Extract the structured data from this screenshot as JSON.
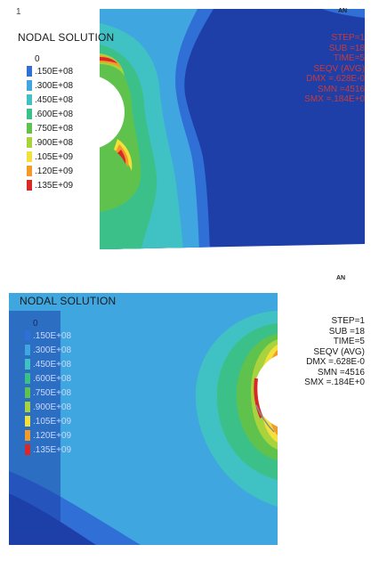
{
  "panels": [
    {
      "title": "NODAL SOLUTION",
      "step_number": "1",
      "ansys_mark": "AN",
      "info_lines": [
        "STEP=1",
        "SUB =18",
        "TIME=5",
        "SEQV    (AVG)",
        "DMX =.628E-0",
        "SMN =4516",
        "SMX =.184E+0"
      ],
      "legend": [
        {
          "label": "0",
          "color": "#1e3fa8"
        },
        {
          "label": ".150E+08",
          "color": "#2f6fd6"
        },
        {
          "label": ".300E+08",
          "color": "#3fa6e0"
        },
        {
          "label": ".450E+08",
          "color": "#40c2c4"
        },
        {
          "label": ".600E+08",
          "color": "#3cc08a"
        },
        {
          "label": ".750E+08",
          "color": "#5fc24c"
        },
        {
          "label": ".900E+08",
          "color": "#a9d33c"
        },
        {
          "label": ".105E+09",
          "color": "#f3e03a"
        },
        {
          "label": ".120E+09",
          "color": "#f39a2a"
        },
        {
          "label": ".135E+09",
          "color": "#d92828"
        }
      ]
    },
    {
      "title": "NODAL SOLUTION",
      "ansys_mark": "AN",
      "info_lines": [
        "STEP=1",
        "SUB =18",
        "TIME=5",
        "SEQV    (AVG)",
        "DMX =.628E-0",
        "SMN =4516",
        "SMX =.184E+0"
      ],
      "legend": [
        {
          "label": "0",
          "color": "#1e3fa8"
        },
        {
          "label": ".150E+08",
          "color": "#2f6fd6"
        },
        {
          "label": ".300E+08",
          "color": "#3fa6e0"
        },
        {
          "label": ".450E+08",
          "color": "#40c2c4"
        },
        {
          "label": ".600E+08",
          "color": "#3cc08a"
        },
        {
          "label": ".750E+08",
          "color": "#5fc24c"
        },
        {
          "label": ".900E+08",
          "color": "#a9d33c"
        },
        {
          "label": ".105E+09",
          "color": "#f3e03a"
        },
        {
          "label": ".120E+09",
          "color": "#f39a2a"
        },
        {
          "label": ".135E+09",
          "color": "#d92828"
        }
      ]
    }
  ]
}
